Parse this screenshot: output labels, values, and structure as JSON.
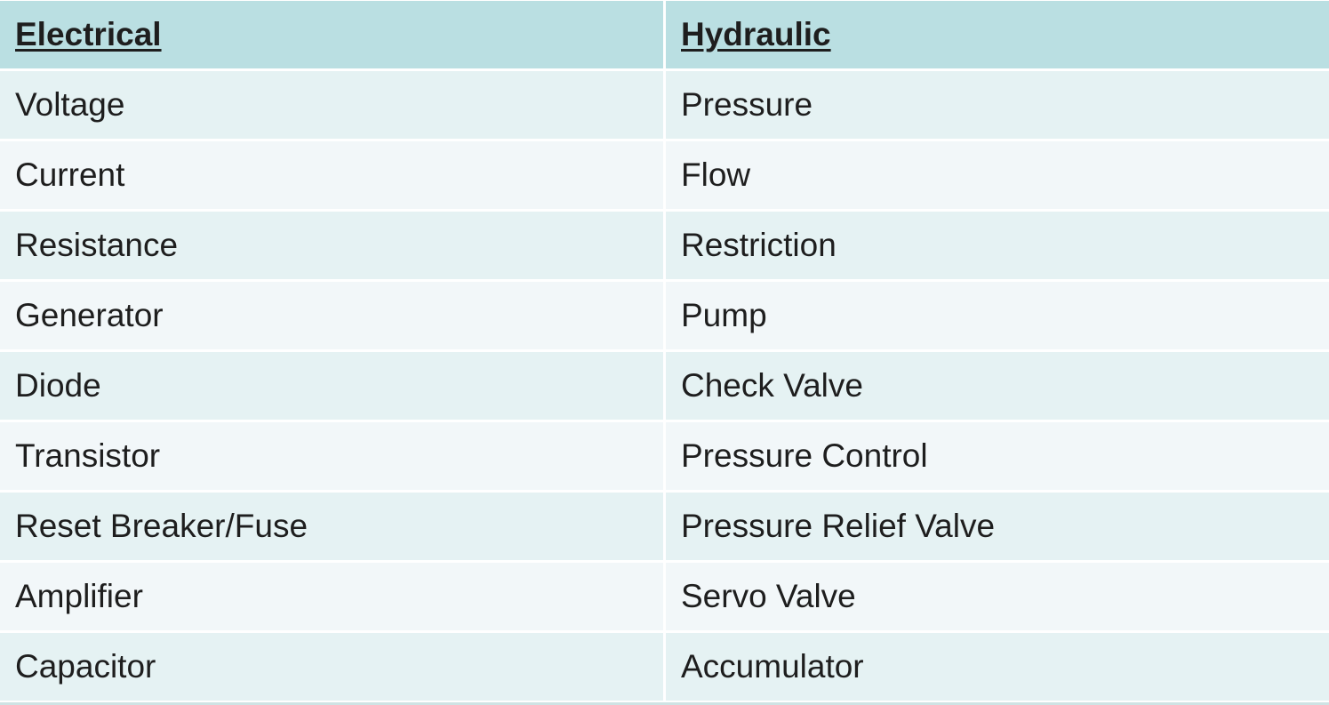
{
  "colors": {
    "header_bg": "#badfe2",
    "row_odd_bg": "#e5f2f3",
    "row_even_bg": "#f2f7f9",
    "text": "#1e1e1e"
  },
  "table": {
    "headers": [
      "Electrical",
      "Hydraulic"
    ],
    "rows": [
      [
        "Voltage",
        "Pressure"
      ],
      [
        "Current",
        "Flow"
      ],
      [
        "Resistance",
        "Restriction"
      ],
      [
        "Generator",
        "Pump"
      ],
      [
        "Diode",
        "Check Valve"
      ],
      [
        "Transistor",
        "Pressure Control"
      ],
      [
        "Reset Breaker/Fuse",
        "Pressure Relief Valve"
      ],
      [
        "Amplifier",
        "Servo Valve"
      ],
      [
        "Capacitor",
        "Accumulator"
      ]
    ]
  }
}
